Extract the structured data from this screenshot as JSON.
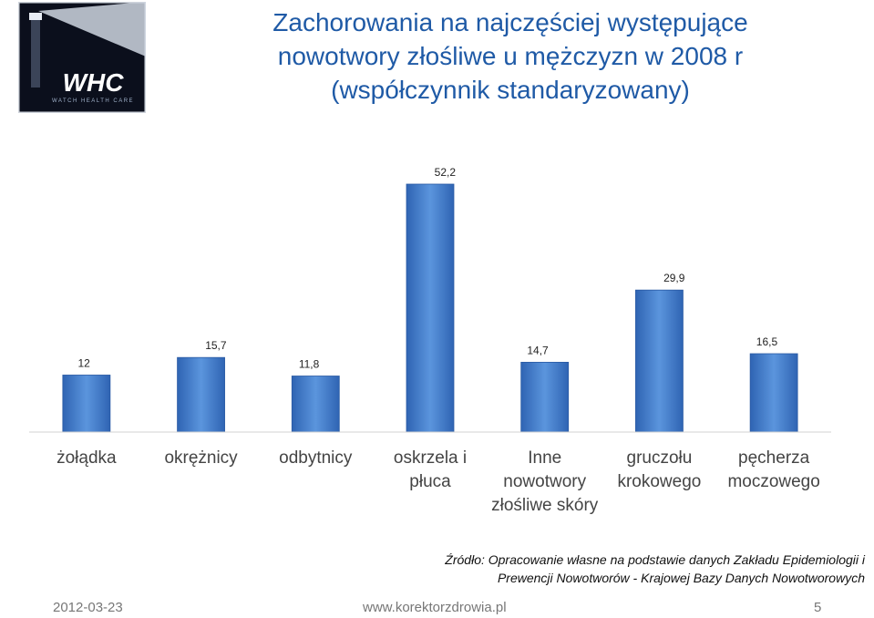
{
  "slide": {
    "title_lines": [
      "Zachorowania na najczęściej występujące",
      "nowotwory złośliwe u mężczyzn w 2008 r",
      "(współczynnik standaryzowany)"
    ],
    "source_lines": [
      "Źródło: Opracowanie własne na podstawie danych Zakładu Epidemiologii i",
      "Prewencji Nowotworów - Krajowej Bazy Danych Nowotworowych"
    ],
    "footer": {
      "date": "2012-03-23",
      "url": "www.korektorzdrowia.pl",
      "page": "5"
    },
    "logo_text": "WHC",
    "logo_subtext": "WATCH HEALTH CARE"
  },
  "colors": {
    "title": "#1f5aa6",
    "bar": "#4a86d3",
    "bar_dark": "#2f64b3",
    "logo_bg": "#0b0f1c"
  },
  "chart_data": {
    "type": "bar",
    "categories": [
      [
        "żołądka"
      ],
      [
        "okrężnicy"
      ],
      [
        "odbytnicy"
      ],
      [
        "oskrzela i",
        "płuca"
      ],
      [
        "Inne",
        "nowotwory",
        "złośliwe skóry"
      ],
      [
        "gruczołu",
        "krokowego"
      ],
      [
        "pęcherza",
        "moczowego"
      ]
    ],
    "values": [
      12,
      15.7,
      11.8,
      52.2,
      14.7,
      29.9,
      16.5
    ],
    "value_labels": [
      "12",
      "15,7",
      "11,8",
      "52,2",
      "14,7",
      "29,9",
      "16,5"
    ],
    "ylim": [
      0,
      52.2
    ],
    "grid": false,
    "legend": "none"
  }
}
